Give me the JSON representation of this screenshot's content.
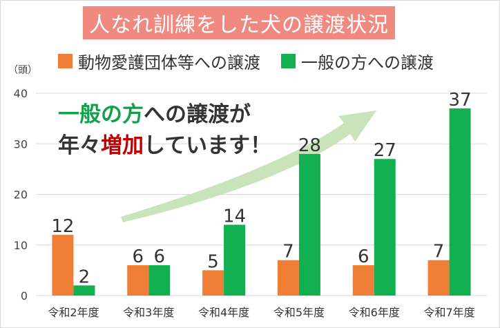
{
  "title": "人なれ訓練をした犬の譲渡状況",
  "unit_label": "（頭）",
  "callout": {
    "line1_highlight": "一般の方",
    "line1_rest": "への譲渡が",
    "line2_start": "年々",
    "line2_highlight": "増加",
    "line2_rest": "しています！"
  },
  "colors": {
    "title_bg": "#f08a80",
    "orange": "#ef7f36",
    "green": "#12b050",
    "arrow": "#c9e3ba",
    "callout_green": "#12a04a",
    "callout_red": "#c00000",
    "grid": "#d9d9d9"
  },
  "chart_data": {
    "type": "bar",
    "categories": [
      "令和2年度",
      "令和3年度",
      "令和4年度",
      "令和5年度",
      "令和6年度",
      "令和7年度"
    ],
    "series": [
      {
        "name": "動物愛護団体等への譲渡",
        "values": [
          12,
          6,
          5,
          7,
          6,
          7
        ]
      },
      {
        "name": "一般の方への譲渡",
        "values": [
          2,
          6,
          14,
          28,
          27,
          37
        ]
      }
    ],
    "ylim": [
      0,
      40
    ],
    "yticks": [
      "0",
      "10",
      "20",
      "30",
      "40"
    ],
    "ylabel": "",
    "xlabel": "",
    "grid": true,
    "legend": "top"
  }
}
